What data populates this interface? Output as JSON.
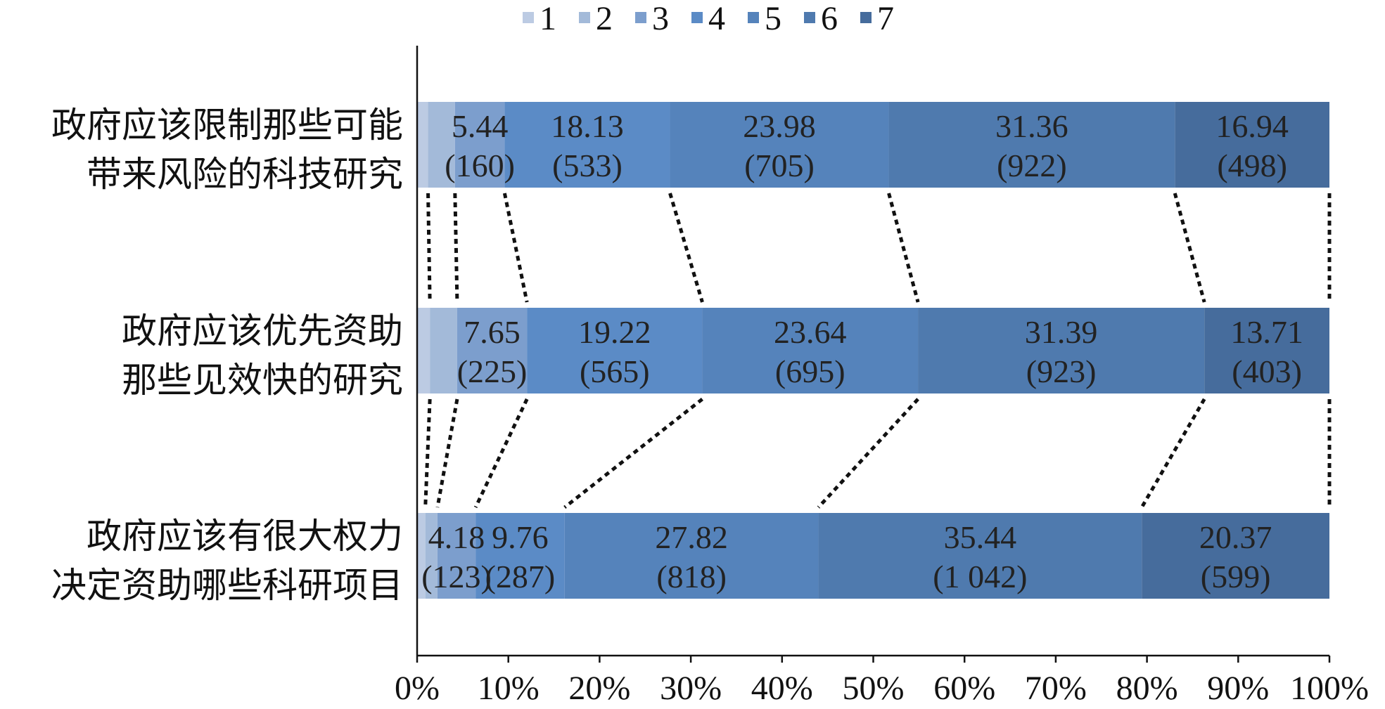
{
  "chart_data": {
    "type": "bar",
    "orientation": "horizontal",
    "stacked": "percent",
    "title": "",
    "xlabel": "",
    "ylabel": "",
    "xlim": [
      0,
      100
    ],
    "x_ticks": [
      "0%",
      "10%",
      "20%",
      "30%",
      "40%",
      "50%",
      "60%",
      "70%",
      "80%",
      "90%",
      "100%"
    ],
    "legend_position": "top",
    "grid": false,
    "categories": [
      [
        "政府应该限制那些可能",
        "带来风险的科技研究"
      ],
      [
        "政府应该优先资助",
        "那些见效快的研究"
      ],
      [
        "政府应该有很大权力",
        "决定资助哪些科研项目"
      ]
    ],
    "series": [
      {
        "name": "1",
        "color": "#bccbe3",
        "values": [
          1.2,
          1.4,
          0.9
        ],
        "labels": [
          null,
          null,
          null
        ]
      },
      {
        "name": "2",
        "color": "#a3bad9",
        "values": [
          2.95,
          2.99,
          1.33
        ],
        "labels": [
          null,
          null,
          null
        ]
      },
      {
        "name": "3",
        "color": "#7c9ecd",
        "values": [
          5.44,
          7.65,
          4.18
        ],
        "labels": [
          [
            "5.44",
            "(160)"
          ],
          [
            "7.65",
            "(225)"
          ],
          [
            "4.18",
            "(123)"
          ]
        ]
      },
      {
        "name": "4",
        "color": "#5b8bc6",
        "values": [
          18.13,
          19.22,
          9.76
        ],
        "labels": [
          [
            "18.13",
            "(533)"
          ],
          [
            "19.22",
            "(565)"
          ],
          [
            "9.76",
            "(287)"
          ]
        ]
      },
      {
        "name": "5",
        "color": "#5583bb",
        "values": [
          23.98,
          23.64,
          27.82
        ],
        "labels": [
          [
            "23.98",
            "(705)"
          ],
          [
            "23.64",
            "(695)"
          ],
          [
            "27.82",
            "(818)"
          ]
        ]
      },
      {
        "name": "6",
        "color": "#4f7aae",
        "values": [
          31.36,
          31.39,
          35.44
        ],
        "labels": [
          [
            "31.36",
            "(922)"
          ],
          [
            "31.39",
            "(923)"
          ],
          [
            "35.44",
            "(1 042)"
          ]
        ]
      },
      {
        "name": "7",
        "color": "#466c9c",
        "values": [
          16.94,
          13.71,
          20.37
        ],
        "labels": [
          [
            "16.94",
            "(498)"
          ],
          [
            "13.71",
            "(403)"
          ],
          [
            "20.37",
            "(599)"
          ]
        ]
      }
    ]
  }
}
